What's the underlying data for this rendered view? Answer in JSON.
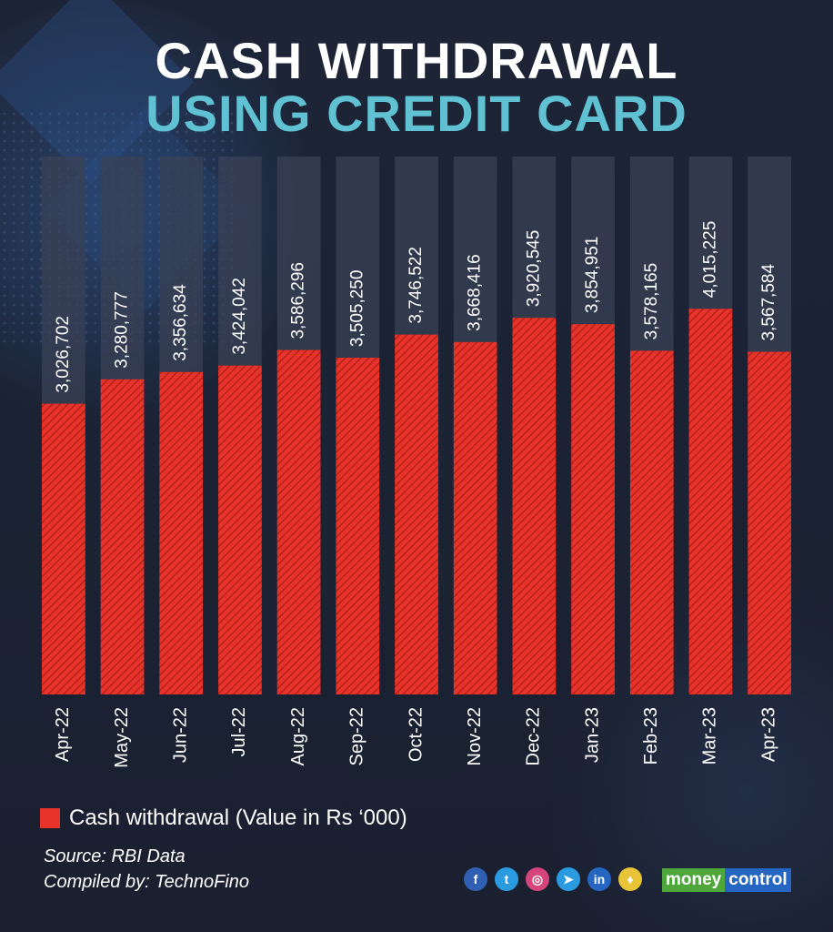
{
  "header": {
    "title_line1": "CASH WITHDRAWAL",
    "title_line2": "USING CREDIT CARD"
  },
  "chart_data": {
    "type": "bar",
    "categories": [
      "Apr-22",
      "May-22",
      "Jun-22",
      "Jul-22",
      "Aug-22",
      "Sep-22",
      "Oct-22",
      "Nov-22",
      "Dec-22",
      "Jan-23",
      "Feb-23",
      "Mar-23",
      "Apr-23"
    ],
    "series": [
      {
        "name": "Cash withdrawal (Value in Rs ‘000)",
        "values": [
          3026702,
          3280777,
          3356634,
          3424042,
          3586296,
          3505250,
          3746522,
          3668416,
          3920545,
          3854951,
          3578165,
          4015225,
          3567584
        ],
        "labels": [
          "3,026,702",
          "3,280,777",
          "3,356,634",
          "3,424,042",
          "3,586,296",
          "3,505,250",
          "3,746,522",
          "3,668,416",
          "3,920,545",
          "3,854,951",
          "3,578,165",
          "4,015,225",
          "3,567,584"
        ]
      }
    ],
    "ylim": [
      0,
      5600000
    ],
    "grid": false,
    "legend": "bottom-left",
    "colors": {
      "bar": "#e8332a",
      "bar_stripe": "#b8221c",
      "track": "#3a4256",
      "text": "#ffffff"
    }
  },
  "legend": {
    "label": "Cash withdrawal (Value in Rs ‘000)"
  },
  "footer": {
    "source": "Source: RBI Data",
    "compiled": "Compiled by: TechnoFino",
    "social_icons": [
      {
        "name": "facebook-icon",
        "glyph": "f",
        "color": "#2f5fb3"
      },
      {
        "name": "twitter-icon",
        "glyph": "t",
        "color": "#2a9be0"
      },
      {
        "name": "instagram-icon",
        "glyph": "◎",
        "color": "#d6457a"
      },
      {
        "name": "telegram-icon",
        "glyph": "➤",
        "color": "#2a9be0"
      },
      {
        "name": "linkedin-icon",
        "glyph": "in",
        "color": "#2566c2"
      },
      {
        "name": "koo-icon",
        "glyph": "♦",
        "color": "#e9c338"
      }
    ],
    "brand_part1": "money",
    "brand_part2": "control"
  }
}
